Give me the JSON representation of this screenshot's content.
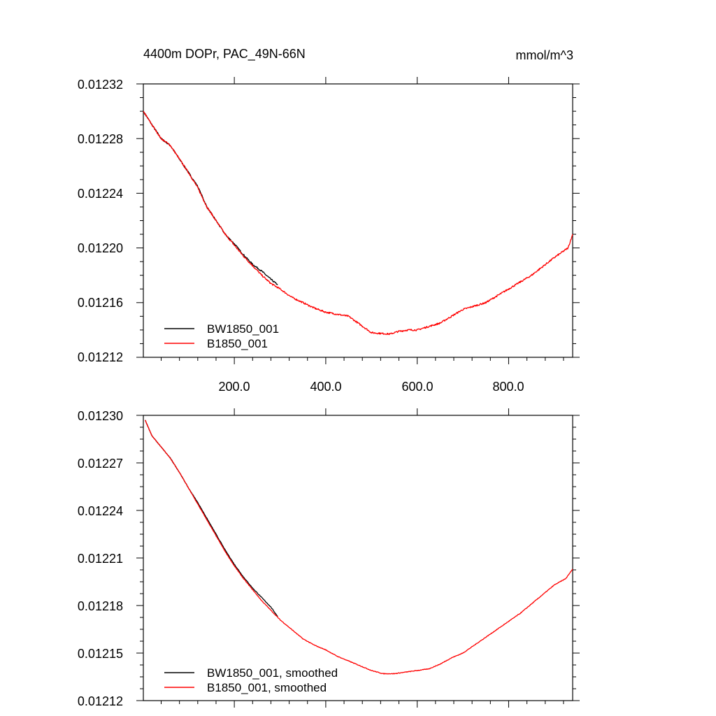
{
  "chart_data": [
    {
      "type": "line",
      "title": "4400m DOPr, PAC_49N-66N",
      "units": "mmol/m^3",
      "xlim": [
        1,
        940
      ],
      "ylim": [
        0.01212,
        0.01232
      ],
      "x_ticks": [
        200,
        400,
        600,
        800
      ],
      "x_tick_labels": [
        "200.0",
        "400.0",
        "600.0",
        "800.0"
      ],
      "y_ticks": [
        0.01212,
        0.01216,
        0.0122,
        0.01224,
        0.01228,
        0.01232
      ],
      "y_tick_labels": [
        "0.01212",
        "0.01216",
        "0.01220",
        "0.01224",
        "0.01228",
        "0.01232"
      ],
      "legend_position": "bottom-left",
      "series": [
        {
          "name": "BW1850_001",
          "color": "#000000",
          "noise": 6e-07,
          "x": [
            1,
            20,
            40,
            60,
            80,
            100,
            120,
            140,
            160,
            180,
            200,
            220,
            240,
            260,
            280,
            295
          ],
          "values": [
            0.0123,
            0.01229,
            0.01228,
            0.012275,
            0.012265,
            0.012255,
            0.012245,
            0.01223,
            0.01222,
            0.01221,
            0.012203,
            0.012195,
            0.012188,
            0.012183,
            0.012177,
            0.012173
          ]
        },
        {
          "name": "B1850_001",
          "color": "#ff0000",
          "noise": 6e-07,
          "x": [
            1,
            20,
            40,
            60,
            80,
            100,
            120,
            140,
            160,
            180,
            200,
            220,
            240,
            260,
            280,
            300,
            325,
            350,
            375,
            400,
            450,
            500,
            540,
            560,
            580,
            600,
            650,
            700,
            750,
            800,
            850,
            900,
            930,
            940
          ],
          "values": [
            0.0123,
            0.01229,
            0.01228,
            0.012275,
            0.012265,
            0.012255,
            0.012244,
            0.01223,
            0.01222,
            0.01221,
            0.012202,
            0.012194,
            0.012187,
            0.01218,
            0.012174,
            0.01217,
            0.012164,
            0.01216,
            0.012156,
            0.012153,
            0.01215,
            0.012138,
            0.012137,
            0.012139,
            0.01214,
            0.01214,
            0.012145,
            0.012155,
            0.01216,
            0.01217,
            0.01218,
            0.012193,
            0.0122,
            0.01221
          ]
        }
      ]
    },
    {
      "type": "line",
      "xlim": [
        1,
        940
      ],
      "ylim": [
        0.01212,
        0.0123
      ],
      "x_ticks": [
        200,
        400,
        600,
        800
      ],
      "y_ticks": [
        0.01212,
        0.01215,
        0.01218,
        0.01221,
        0.01224,
        0.01227,
        0.0123
      ],
      "y_tick_labels": [
        "0.01212",
        "0.01215",
        "0.01218",
        "0.01221",
        "0.01224",
        "0.01227",
        "0.01230"
      ],
      "legend_position": "bottom-left",
      "series": [
        {
          "name": "BW1850_001, smoothed",
          "color": "#000000",
          "noise": 2e-07,
          "x": [
            5,
            20,
            40,
            60,
            80,
            100,
            120,
            140,
            160,
            180,
            200,
            220,
            240,
            260,
            280,
            295
          ],
          "values": [
            0.012297,
            0.012287,
            0.01228,
            0.012273,
            0.012264,
            0.012254,
            0.012245,
            0.012235,
            0.012225,
            0.012215,
            0.012206,
            0.012198,
            0.012191,
            0.012185,
            0.012179,
            0.012173
          ]
        },
        {
          "name": "B1850_001, smoothed",
          "color": "#ff0000",
          "noise": 2e-07,
          "x": [
            5,
            20,
            40,
            60,
            80,
            100,
            120,
            140,
            160,
            180,
            200,
            220,
            240,
            260,
            280,
            300,
            325,
            350,
            375,
            400,
            425,
            450,
            475,
            500,
            525,
            550,
            575,
            600,
            625,
            650,
            675,
            700,
            725,
            750,
            775,
            800,
            825,
            850,
            875,
            900,
            925,
            940
          ],
          "values": [
            0.012297,
            0.012287,
            0.01228,
            0.012273,
            0.012264,
            0.012254,
            0.012244,
            0.012234,
            0.012224,
            0.012214,
            0.012205,
            0.012197,
            0.01219,
            0.012183,
            0.012177,
            0.012171,
            0.012165,
            0.012159,
            0.012155,
            0.012152,
            0.012148,
            0.012145,
            0.012142,
            0.012139,
            0.012137,
            0.012137,
            0.012138,
            0.012139,
            0.01214,
            0.012143,
            0.012147,
            0.01215,
            0.012155,
            0.01216,
            0.012165,
            0.01217,
            0.012175,
            0.012181,
            0.012187,
            0.012193,
            0.012197,
            0.012203
          ]
        }
      ]
    }
  ]
}
